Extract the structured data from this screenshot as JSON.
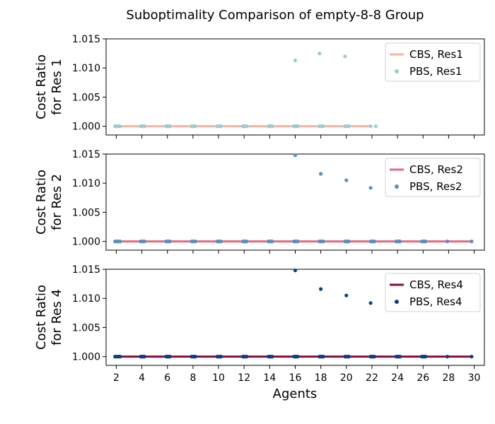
{
  "figure": {
    "title": "Suboptimality Comparison of empty-8-8 Group",
    "xlabel": "Agents"
  },
  "chart_data": [
    {
      "type": "scatter",
      "title": "",
      "xlabel": "",
      "ylabel": "Cost Ratio\nfor Res 1",
      "xlim": [
        1.2,
        30.8
      ],
      "ylim": [
        0.9985,
        1.015
      ],
      "yticks": [
        "1.000",
        "1.005",
        "1.010",
        "1.015"
      ],
      "xticks": [],
      "legend_position": "top-right",
      "series": [
        {
          "name": "CBS, Res1",
          "kind": "line",
          "color": "#f7b49d",
          "x": [
            2,
            22
          ],
          "y": [
            1.0,
            1.0
          ]
        },
        {
          "name": "PBS, Res1",
          "kind": "points",
          "color": "#9accd6",
          "x": [
            1.9,
            2.0,
            2.1,
            2.2,
            2.3,
            3.9,
            4.0,
            4.1,
            4.2,
            5.9,
            6.0,
            6.1,
            6.2,
            7.9,
            8.0,
            8.1,
            8.2,
            9.9,
            10.0,
            10.1,
            10.2,
            11.9,
            12.0,
            12.1,
            12.2,
            13.9,
            14.0,
            14.1,
            14.2,
            15.9,
            16.0,
            16.1,
            16.2,
            17.9,
            18.0,
            18.1,
            18.2,
            19.9,
            20.0,
            20.1,
            20.2,
            21.9,
            22.3,
            16.0,
            17.9,
            19.9
          ],
          "y": [
            1.0,
            1.0,
            1.0,
            1.0,
            1.0,
            1.0,
            1.0,
            1.0,
            1.0,
            1.0,
            1.0,
            1.0,
            1.0,
            1.0,
            1.0,
            1.0,
            1.0,
            1.0,
            1.0,
            1.0,
            1.0,
            1.0,
            1.0,
            1.0,
            1.0,
            1.0,
            1.0,
            1.0,
            1.0,
            1.0,
            1.0,
            1.0,
            1.0,
            1.0,
            1.0,
            1.0,
            1.0,
            1.0,
            1.0,
            1.0,
            1.0,
            1.0,
            1.0,
            1.0113,
            1.0125,
            1.012
          ]
        }
      ]
    },
    {
      "type": "scatter",
      "title": "",
      "xlabel": "",
      "ylabel": "Cost Ratio\nfor Res 2",
      "xlim": [
        1.2,
        30.8
      ],
      "ylim": [
        0.9985,
        1.015
      ],
      "yticks": [
        "1.000",
        "1.005",
        "1.010",
        "1.015"
      ],
      "xticks": [],
      "legend_position": "top-right",
      "series": [
        {
          "name": "CBS, Res2",
          "kind": "line",
          "color": "#e46a7b",
          "x": [
            2,
            29.8
          ],
          "y": [
            1.0,
            1.0
          ]
        },
        {
          "name": "PBS, Res2",
          "kind": "points",
          "color": "#5a8fc2",
          "x": [
            1.9,
            2.0,
            2.1,
            2.2,
            2.3,
            3.9,
            4.0,
            4.1,
            4.2,
            5.9,
            6.0,
            6.1,
            6.2,
            7.9,
            8.0,
            8.1,
            8.2,
            9.9,
            10.0,
            10.1,
            10.2,
            11.9,
            12.0,
            12.1,
            12.2,
            13.9,
            14.0,
            14.1,
            14.2,
            15.9,
            16.0,
            16.1,
            16.2,
            17.9,
            18.0,
            18.1,
            18.2,
            19.9,
            20.0,
            20.1,
            20.2,
            21.9,
            22.0,
            22.1,
            22.2,
            23.9,
            24.0,
            24.1,
            24.2,
            25.9,
            26.0,
            26.1,
            26.2,
            27.9,
            29.8,
            16.0,
            18.0,
            20.0,
            21.9
          ],
          "y": [
            1.0,
            1.0,
            1.0,
            1.0,
            1.0,
            1.0,
            1.0,
            1.0,
            1.0,
            1.0,
            1.0,
            1.0,
            1.0,
            1.0,
            1.0,
            1.0,
            1.0,
            1.0,
            1.0,
            1.0,
            1.0,
            1.0,
            1.0,
            1.0,
            1.0,
            1.0,
            1.0,
            1.0,
            1.0,
            1.0,
            1.0,
            1.0,
            1.0,
            1.0,
            1.0,
            1.0,
            1.0,
            1.0,
            1.0,
            1.0,
            1.0,
            1.0,
            1.0,
            1.0,
            1.0,
            1.0,
            1.0,
            1.0,
            1.0,
            1.0,
            1.0,
            1.0,
            1.0,
            1.0,
            1.0,
            1.0148,
            1.0116,
            1.0105,
            1.0092
          ]
        }
      ]
    },
    {
      "type": "scatter",
      "title": "",
      "xlabel": "",
      "ylabel": "Cost Ratio\nfor Res 4",
      "xlim": [
        1.2,
        30.8
      ],
      "ylim": [
        0.9985,
        1.015
      ],
      "yticks": [
        "1.000",
        "1.005",
        "1.010",
        "1.015"
      ],
      "xticks": [
        "2",
        "4",
        "6",
        "8",
        "10",
        "12",
        "14",
        "16",
        "18",
        "20",
        "22",
        "24",
        "26",
        "28",
        "30"
      ],
      "legend_position": "top-right",
      "series": [
        {
          "name": "CBS, Res4",
          "kind": "line",
          "color": "#8b0a3c",
          "x": [
            2,
            29.8
          ],
          "y": [
            1.0,
            1.0
          ]
        },
        {
          "name": "PBS, Res4",
          "kind": "points",
          "color": "#0a3f8f",
          "x": [
            1.9,
            2.0,
            2.1,
            2.2,
            2.3,
            3.9,
            4.0,
            4.1,
            4.2,
            5.9,
            6.0,
            6.1,
            6.2,
            7.9,
            8.0,
            8.1,
            8.2,
            9.9,
            10.0,
            10.1,
            10.2,
            11.9,
            12.0,
            12.1,
            12.2,
            13.9,
            14.0,
            14.1,
            14.2,
            15.9,
            16.0,
            16.1,
            16.2,
            17.9,
            18.0,
            18.1,
            18.2,
            19.9,
            20.0,
            20.1,
            20.2,
            21.9,
            22.0,
            22.1,
            22.2,
            23.9,
            24.0,
            24.1,
            24.2,
            25.9,
            26.0,
            26.1,
            26.2,
            27.9,
            29.8,
            16.0,
            18.0,
            20.0,
            21.9
          ],
          "y": [
            1.0,
            1.0,
            1.0,
            1.0,
            1.0,
            1.0,
            1.0,
            1.0,
            1.0,
            1.0,
            1.0,
            1.0,
            1.0,
            1.0,
            1.0,
            1.0,
            1.0,
            1.0,
            1.0,
            1.0,
            1.0,
            1.0,
            1.0,
            1.0,
            1.0,
            1.0,
            1.0,
            1.0,
            1.0,
            1.0,
            1.0,
            1.0,
            1.0,
            1.0,
            1.0,
            1.0,
            1.0,
            1.0,
            1.0,
            1.0,
            1.0,
            1.0,
            1.0,
            1.0,
            1.0,
            1.0,
            1.0,
            1.0,
            1.0,
            1.0,
            1.0,
            1.0,
            1.0,
            1.0,
            1.0,
            1.0148,
            1.0116,
            1.0105,
            1.0092
          ]
        }
      ]
    }
  ]
}
